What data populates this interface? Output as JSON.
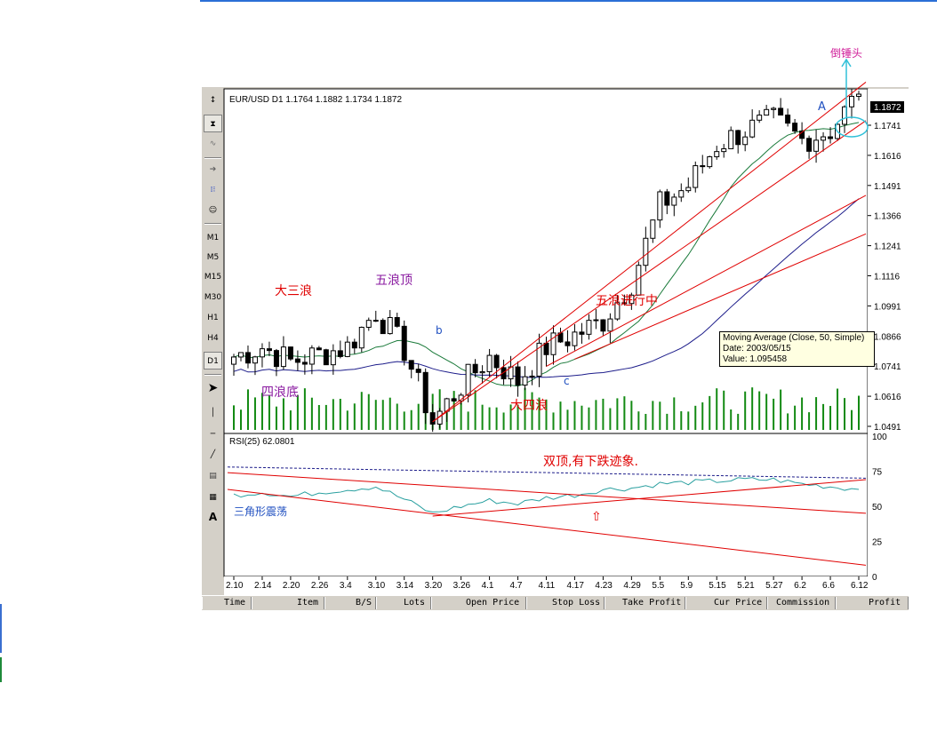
{
  "header": {
    "symbol_line": "EUR/USD D1  1.1764  1.1882  1.1734  1.1872"
  },
  "toolbar": {
    "icons": [
      "cursor-icon",
      "candle-icon",
      "line-icon",
      "zoom-icon",
      "indicator-icon",
      "expert-icon"
    ],
    "periods": [
      "M1",
      "M5",
      "M15",
      "M30",
      "H1",
      "H4",
      "D1"
    ],
    "selected_period": "D1",
    "text_tool": "A"
  },
  "price_axis": {
    "labels": [
      "1.1741",
      "1.1616",
      "1.1491",
      "1.1366",
      "1.1241",
      "1.1116",
      "1.0991",
      "1.0866",
      "1.0741",
      "1.0616",
      "1.0491"
    ],
    "current_price": "1.1872"
  },
  "rsi_panel": {
    "label": "RSI(25)  62.0801",
    "levels": [
      "100",
      "75",
      "50",
      "25",
      "0"
    ]
  },
  "time_axis": [
    "2.10",
    "2.14",
    "2.20",
    "2.26",
    "3.4",
    "3.10",
    "3.14",
    "3.20",
    "3.26",
    "4.1",
    "4.7",
    "4.11",
    "4.17",
    "4.23",
    "4.29",
    "5.5",
    "5.9",
    "5.15",
    "5.21",
    "5.27",
    "6.2",
    "6.6",
    "6.12"
  ],
  "annotations": {
    "big_wave3": "大三浪",
    "wave5_top": "五浪顶",
    "wave4_bottom": "四浪底",
    "big_wave4": "大四浪",
    "wave5_progress": "五浪进行中",
    "inverted_hammer": "倒锤头",
    "letter_a": "A",
    "letter_b": "b",
    "letter_c": "c",
    "double_top": "双顶,有下跌迹象.",
    "triangle": "三角形震荡",
    "arrow_up": "⇧"
  },
  "tooltip": {
    "line1": "Moving Average (Close, 50, Simple)",
    "line2": "Date: 2003/05/15",
    "line3": "Value: 1.095458"
  },
  "terminal_columns": [
    "Time",
    "Item",
    "B/S",
    "Lots",
    "Open Price",
    "Stop Loss",
    "Take Profit",
    "Cur Price",
    "Commission",
    "Profit"
  ],
  "colors": {
    "up_candle": "#ffffff",
    "down_candle": "#000000",
    "ma_fast": "#1a7a3a",
    "ma_slow": "#1c1c8a",
    "trendline": "#e00000",
    "rsi": "#2aa0a0",
    "volume": "#138a13",
    "annotation_red": "#e00000",
    "annotation_purple": "#8a1aa0",
    "annotation_blue": "#2050c0",
    "annotation_magenta": "#d0209a"
  },
  "chart_data": {
    "type": "line",
    "title": "EUR/USD D1",
    "x": [
      "2.10",
      "2.14",
      "2.20",
      "2.26",
      "3.4",
      "3.10",
      "3.14",
      "3.20",
      "3.26",
      "4.1",
      "4.7",
      "4.11",
      "4.17",
      "4.23",
      "4.29",
      "5.5",
      "5.9",
      "5.15",
      "5.21",
      "5.27",
      "6.2",
      "6.6",
      "6.12"
    ],
    "series": [
      {
        "name": "Close",
        "values": [
          1.078,
          1.082,
          1.076,
          1.079,
          1.082,
          1.097,
          1.081,
          1.051,
          1.066,
          1.078,
          1.068,
          1.082,
          1.087,
          1.093,
          1.109,
          1.141,
          1.149,
          1.166,
          1.172,
          1.176,
          1.168,
          1.172,
          1.187
        ]
      }
    ],
    "ylim": [
      1.045,
      1.19
    ],
    "ohlc_last": {
      "open": 1.1764,
      "high": 1.1882,
      "low": 1.1734,
      "close": 1.1872
    },
    "ma50_point": {
      "date": "2003/05/15",
      "value": 1.095458
    },
    "rsi": {
      "period": 25,
      "last": 62.0801,
      "values": [
        58,
        60,
        57,
        60,
        62,
        64,
        55,
        45,
        50,
        54,
        52,
        56,
        58,
        62,
        63,
        66,
        67,
        68,
        69,
        69,
        66,
        64,
        62
      ]
    }
  }
}
